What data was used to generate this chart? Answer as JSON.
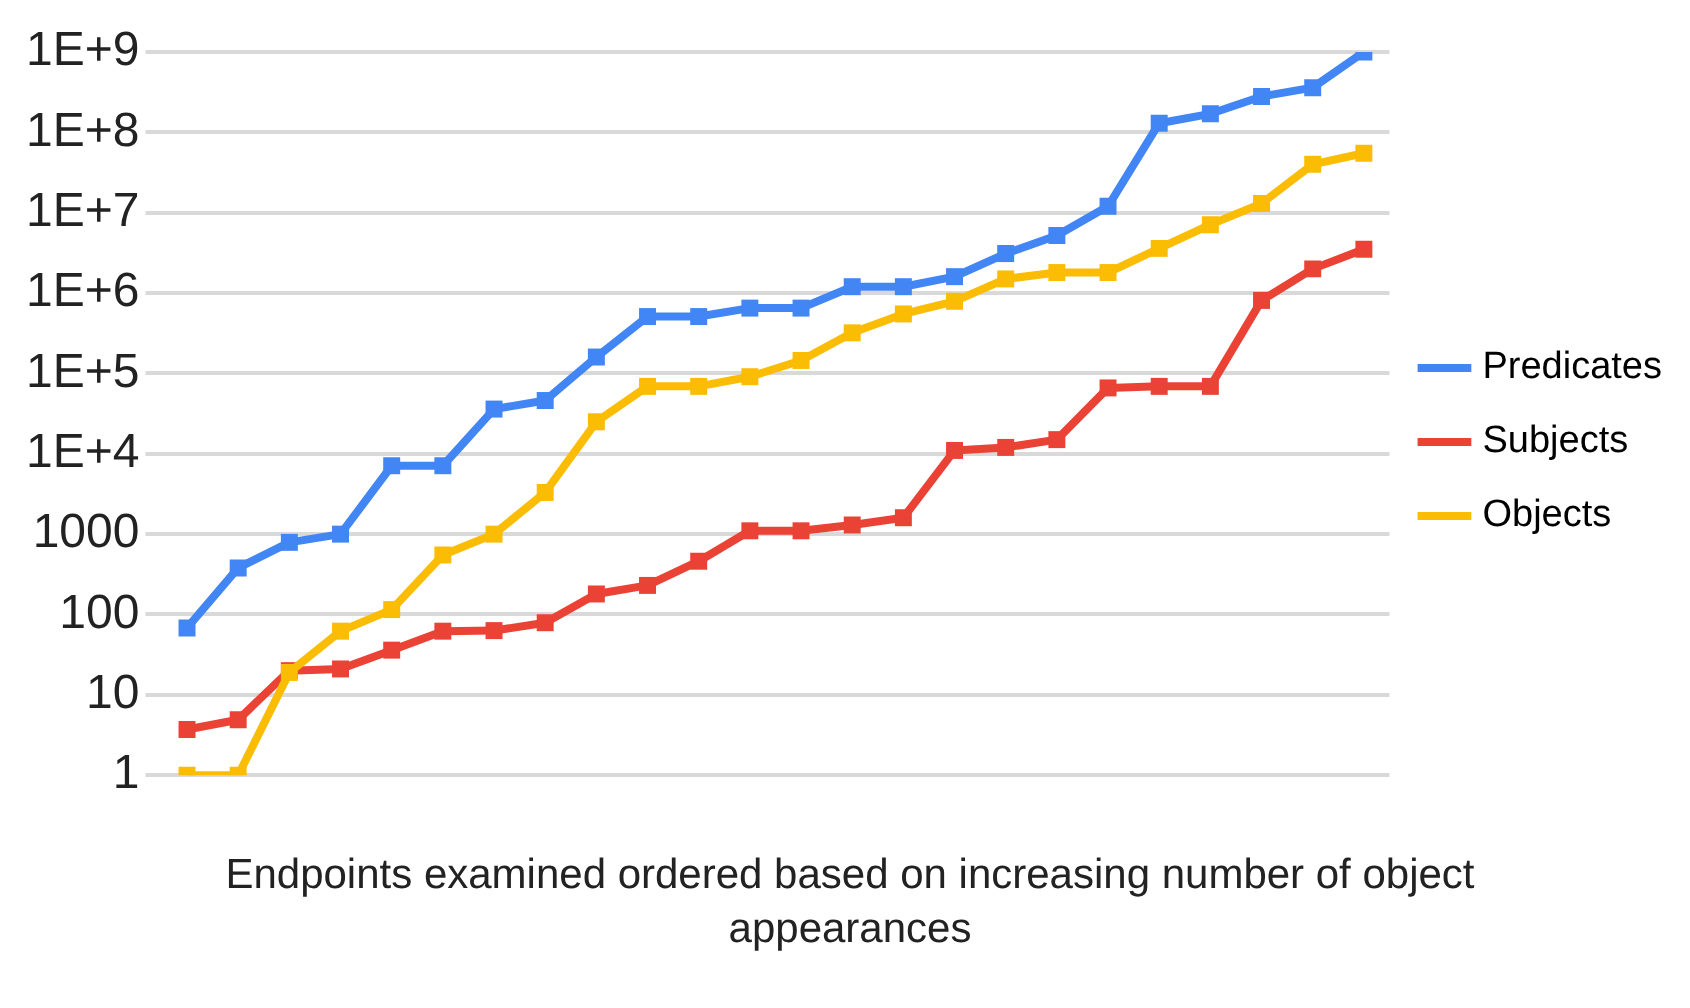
{
  "chart_data": {
    "type": "line",
    "xlabel": "Endpoints examined ordered based on increasing number of object appearances",
    "categories": [
      null,
      null,
      null,
      null,
      null,
      null,
      null,
      null,
      null,
      null,
      null,
      null,
      null,
      null,
      null,
      null,
      null,
      null,
      null,
      null,
      null,
      null,
      null,
      null
    ],
    "log": "y",
    "ylim": [
      1,
      1000000000
    ],
    "yticks": [
      {
        "value": 1,
        "label": "1"
      },
      {
        "value": 10,
        "label": "10"
      },
      {
        "value": 100,
        "label": "100"
      },
      {
        "value": 1000,
        "label": "1000"
      },
      {
        "value": 10000,
        "label": "1E+4"
      },
      {
        "value": 100000,
        "label": "1E+5"
      },
      {
        "value": 1000000,
        "label": "1E+6"
      },
      {
        "value": 10000000,
        "label": "1E+7"
      },
      {
        "value": 100000000,
        "label": "1E+8"
      },
      {
        "value": 1000000000,
        "label": "1E+9"
      }
    ],
    "grid": "y",
    "legend": "right",
    "marker": "square",
    "line_style": "solid",
    "series": [
      {
        "name": "Predicates",
        "color": "#4285f4",
        "values": [
          68,
          380,
          790,
          1000,
          7100,
          7100,
          36000,
          46000,
          160000,
          510000,
          510000,
          650000,
          650000,
          1200000,
          1200000,
          1600000,
          3100000,
          5200000,
          12000000,
          130000000,
          170000000,
          280000000,
          360000000,
          1000000000
        ]
      },
      {
        "name": "Subjects",
        "color": "#ea4335",
        "values": [
          3.7,
          4.9,
          20,
          21,
          36,
          62,
          63,
          79,
          180,
          230,
          460,
          1100,
          1100,
          1300,
          1600,
          11000,
          12000,
          15000,
          66000,
          69000,
          69000,
          810000,
          2000000,
          3500000
        ]
      },
      {
        "name": "Objects",
        "color": "#fbbc04",
        "values": [
          1,
          1,
          19,
          62,
          115,
          550,
          1000,
          3300,
          25000,
          69000,
          69000,
          91000,
          145000,
          320000,
          550000,
          790000,
          1500000,
          1800000,
          1800000,
          3600000,
          7100000,
          13000000,
          40000000,
          55000000
        ]
      }
    ]
  }
}
